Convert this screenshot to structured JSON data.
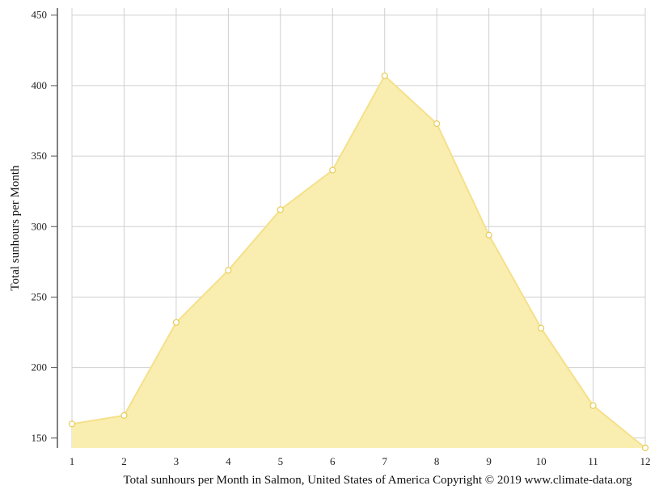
{
  "chart_data": {
    "type": "area",
    "x": [
      1,
      2,
      3,
      4,
      5,
      6,
      7,
      8,
      9,
      10,
      11,
      12
    ],
    "values": [
      160,
      166,
      232,
      269,
      312,
      340,
      407,
      373,
      294,
      228,
      173,
      143
    ],
    "ylabel": "Total sunhours per Month",
    "xlabel": "Total sunhours per Month in Salmon, United States of America Copyright © 2019 www.climate-data.org",
    "ylim": [
      143,
      455
    ],
    "yticks": [
      150,
      200,
      250,
      300,
      350,
      400,
      450
    ],
    "xticks": [
      1,
      2,
      3,
      4,
      5,
      6,
      7,
      8,
      9,
      10,
      11,
      12
    ],
    "grid": true,
    "colors": {
      "fill": "#f9eeb0",
      "line": "#f5e08a",
      "marker_stroke": "#e8cc55",
      "grid": "#d0d0d0",
      "axis": "#555555"
    }
  }
}
